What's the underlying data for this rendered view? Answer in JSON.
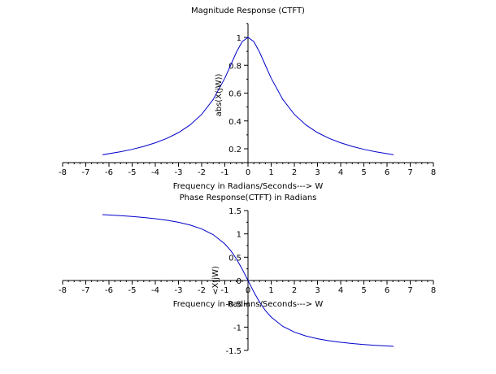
{
  "chart_data": [
    {
      "type": "line",
      "title": "Magnitude Response (CTFT)",
      "xlabel": "Frequency in Radians/Seconds---> W",
      "ylabel": "abs(X(jW))",
      "xlim": [
        -8,
        8
      ],
      "ylim": [
        0.1,
        1.1
      ],
      "xticks": [
        -8,
        -7,
        -6,
        -5,
        -4,
        -3,
        -2,
        -1,
        0,
        1,
        2,
        3,
        4,
        5,
        6,
        7,
        8
      ],
      "yticks": [
        0.2,
        0.4,
        0.6,
        0.8,
        1
      ],
      "ytick_labels": [
        "0.2",
        "0.4",
        "0.6",
        "0.8",
        "1"
      ],
      "grid": false,
      "color": "#0000cc",
      "series": [
        {
          "x": [
            -6.28,
            -5.5,
            -5,
            -4.5,
            -4,
            -3.5,
            -3,
            -2.5,
            -2,
            -1.5,
            -1,
            -0.75,
            -0.5,
            -0.25,
            0,
            0.25,
            0.5,
            0.75,
            1,
            1.5,
            2,
            2.5,
            3,
            3.5,
            4,
            4.5,
            5,
            5.5,
            6.28
          ],
          "y": [
            0.157,
            0.179,
            0.196,
            0.217,
            0.243,
            0.275,
            0.316,
            0.371,
            0.447,
            0.555,
            0.707,
            0.8,
            0.894,
            0.97,
            1.0,
            0.97,
            0.894,
            0.8,
            0.707,
            0.555,
            0.447,
            0.371,
            0.316,
            0.275,
            0.243,
            0.217,
            0.196,
            0.179,
            0.157
          ]
        }
      ]
    },
    {
      "type": "line",
      "title": "Phase Response(CTFT) in Radians",
      "xlabel": "Frequency in Radians/Seconds---> W",
      "ylabel": "<X(jW)",
      "xlim": [
        -8,
        8
      ],
      "ylim": [
        -1.5,
        1.5
      ],
      "xticks": [
        -8,
        -7,
        -6,
        -5,
        -4,
        -3,
        -2,
        -1,
        0,
        1,
        2,
        3,
        4,
        5,
        6,
        7,
        8
      ],
      "yticks": [
        -1.5,
        -1,
        -0.5,
        0,
        0.5,
        1,
        1.5
      ],
      "ytick_labels": [
        "-1.5",
        "-1",
        "-0.5",
        "0",
        "0.5",
        "1",
        "1.5"
      ],
      "grid": false,
      "color": "#0000cc",
      "series": [
        {
          "x": [
            -6.28,
            -5.5,
            -5,
            -4.5,
            -4,
            -3.5,
            -3,
            -2.5,
            -2,
            -1.5,
            -1,
            -0.75,
            -0.5,
            -0.25,
            0,
            0.25,
            0.5,
            0.75,
            1,
            1.5,
            2,
            2.5,
            3,
            3.5,
            4,
            4.5,
            5,
            5.5,
            6.28
          ],
          "y": [
            1.413,
            1.391,
            1.373,
            1.352,
            1.326,
            1.292,
            1.249,
            1.19,
            1.107,
            0.983,
            0.785,
            0.644,
            0.464,
            0.245,
            0,
            -0.245,
            -0.464,
            -0.644,
            -0.785,
            -0.983,
            -1.107,
            -1.19,
            -1.249,
            -1.292,
            -1.326,
            -1.352,
            -1.373,
            -1.391,
            -1.413
          ]
        }
      ]
    }
  ]
}
